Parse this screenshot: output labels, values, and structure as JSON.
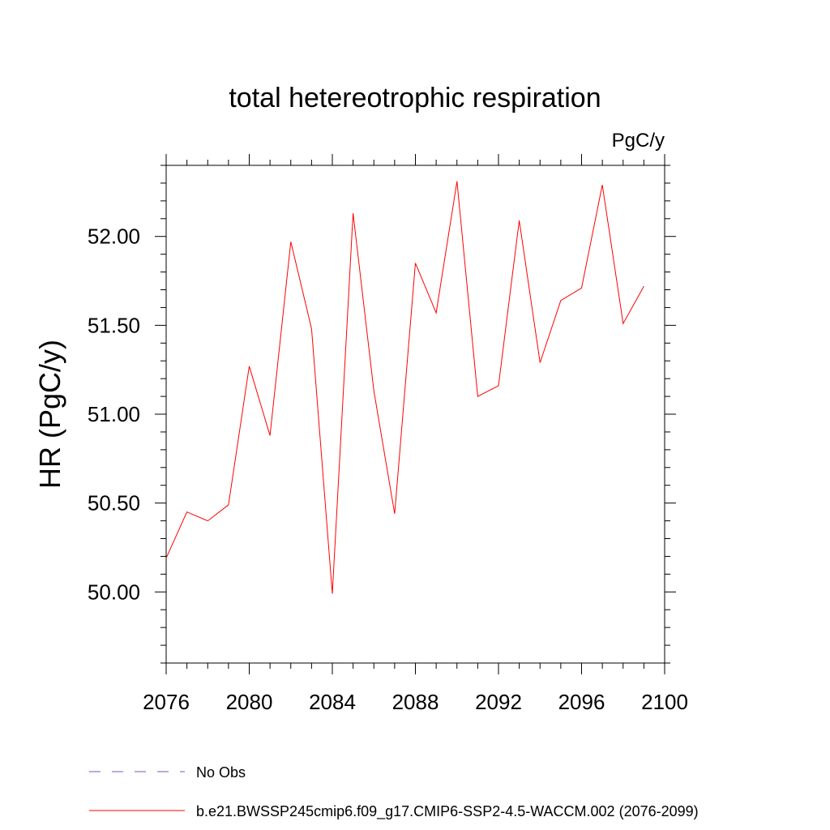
{
  "chart_data": {
    "type": "line",
    "title": "total hetereotrophic respiration",
    "units_label": "PgC/y",
    "ylabel": "HR  (PgC/y)",
    "xlabel": "",
    "xlim": [
      2076,
      2100
    ],
    "ylim": [
      49.6,
      52.4
    ],
    "x_ticks": [
      2076,
      2080,
      2084,
      2088,
      2092,
      2096,
      2100
    ],
    "y_ticks": [
      50.0,
      50.5,
      51.0,
      51.5,
      52.0
    ],
    "y_tick_labels": [
      "50.00",
      "50.50",
      "51.00",
      "51.50",
      "52.00"
    ],
    "series": [
      {
        "name": "b.e21.BWSSP245cmip6.f09_g17.CMIP6-SSP2-4.5-WACCM.002 (2076-2099)",
        "color": "#ff0000",
        "x": [
          2076,
          2077,
          2078,
          2079,
          2080,
          2081,
          2082,
          2083,
          2084,
          2085,
          2086,
          2087,
          2088,
          2089,
          2090,
          2091,
          2092,
          2093,
          2094,
          2095,
          2096,
          2097,
          2098,
          2099
        ],
        "values": [
          50.19,
          50.45,
          50.4,
          50.49,
          51.27,
          50.88,
          51.97,
          51.48,
          49.99,
          52.13,
          51.13,
          50.44,
          51.85,
          51.57,
          52.31,
          51.1,
          51.16,
          52.09,
          51.29,
          51.64,
          51.71,
          52.29,
          51.51,
          51.72
        ]
      }
    ],
    "legend": [
      {
        "label": "No Obs",
        "color": "#6a5acd",
        "dashed": true
      },
      {
        "label": "b.e21.BWSSP245cmip6.f09_g17.CMIP6-SSP2-4.5-WACCM.002 (2076-2099)",
        "color": "#ff0000",
        "dashed": false
      }
    ]
  }
}
